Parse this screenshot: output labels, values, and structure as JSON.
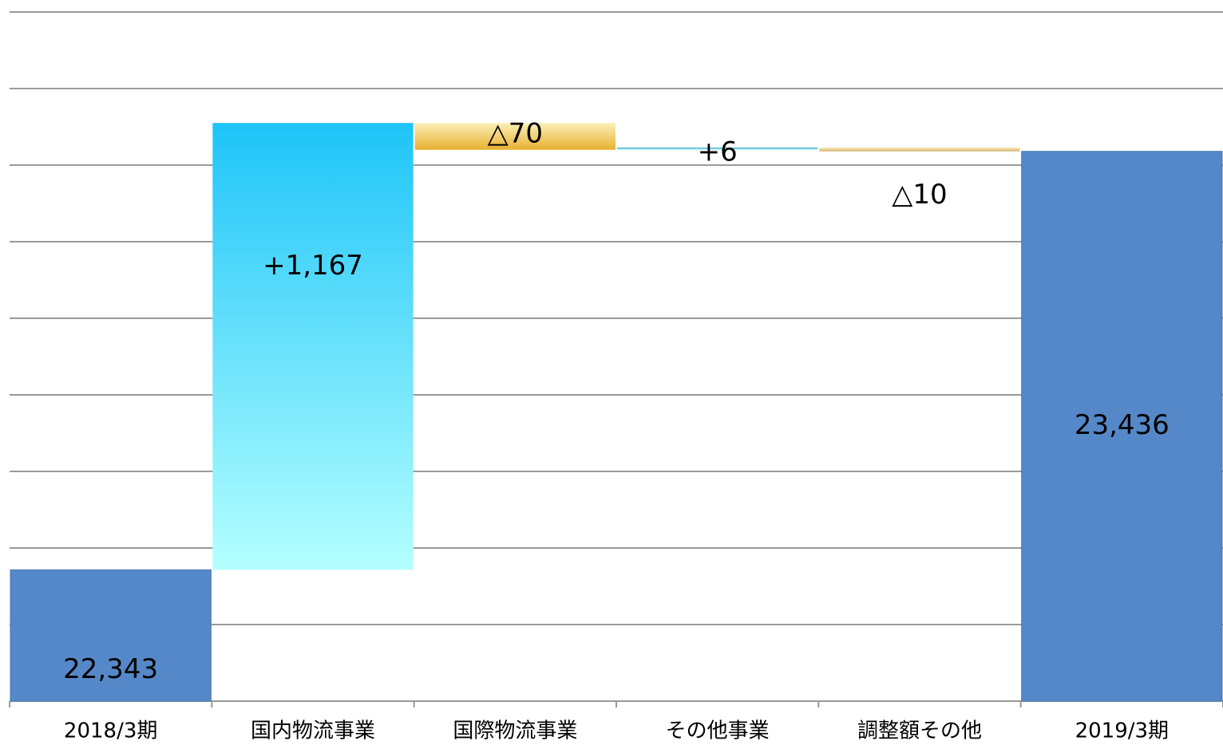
{
  "chart_data": {
    "type": "waterfall",
    "categories": [
      "2018/3期",
      "国内物流事業",
      "国際物流事業",
      "その他事業",
      "調整額その他",
      "2019/3期"
    ],
    "values": [
      22343,
      1167,
      -70,
      6,
      -10,
      23436
    ],
    "value_labels": [
      "22,343",
      "+1,167",
      "△70",
      "+6",
      "△10",
      "23,436"
    ],
    "colors": [
      "#5588c8",
      "#1ec4f8",
      "#e8b030",
      "#4aa8c8",
      "#d4b070",
      "#5588c8"
    ],
    "ylim": [
      22000,
      23800
    ],
    "yticks": [
      22000,
      22200,
      22400,
      22600,
      22800,
      23000,
      23200,
      23400,
      23600,
      23800
    ],
    "grid": true
  }
}
